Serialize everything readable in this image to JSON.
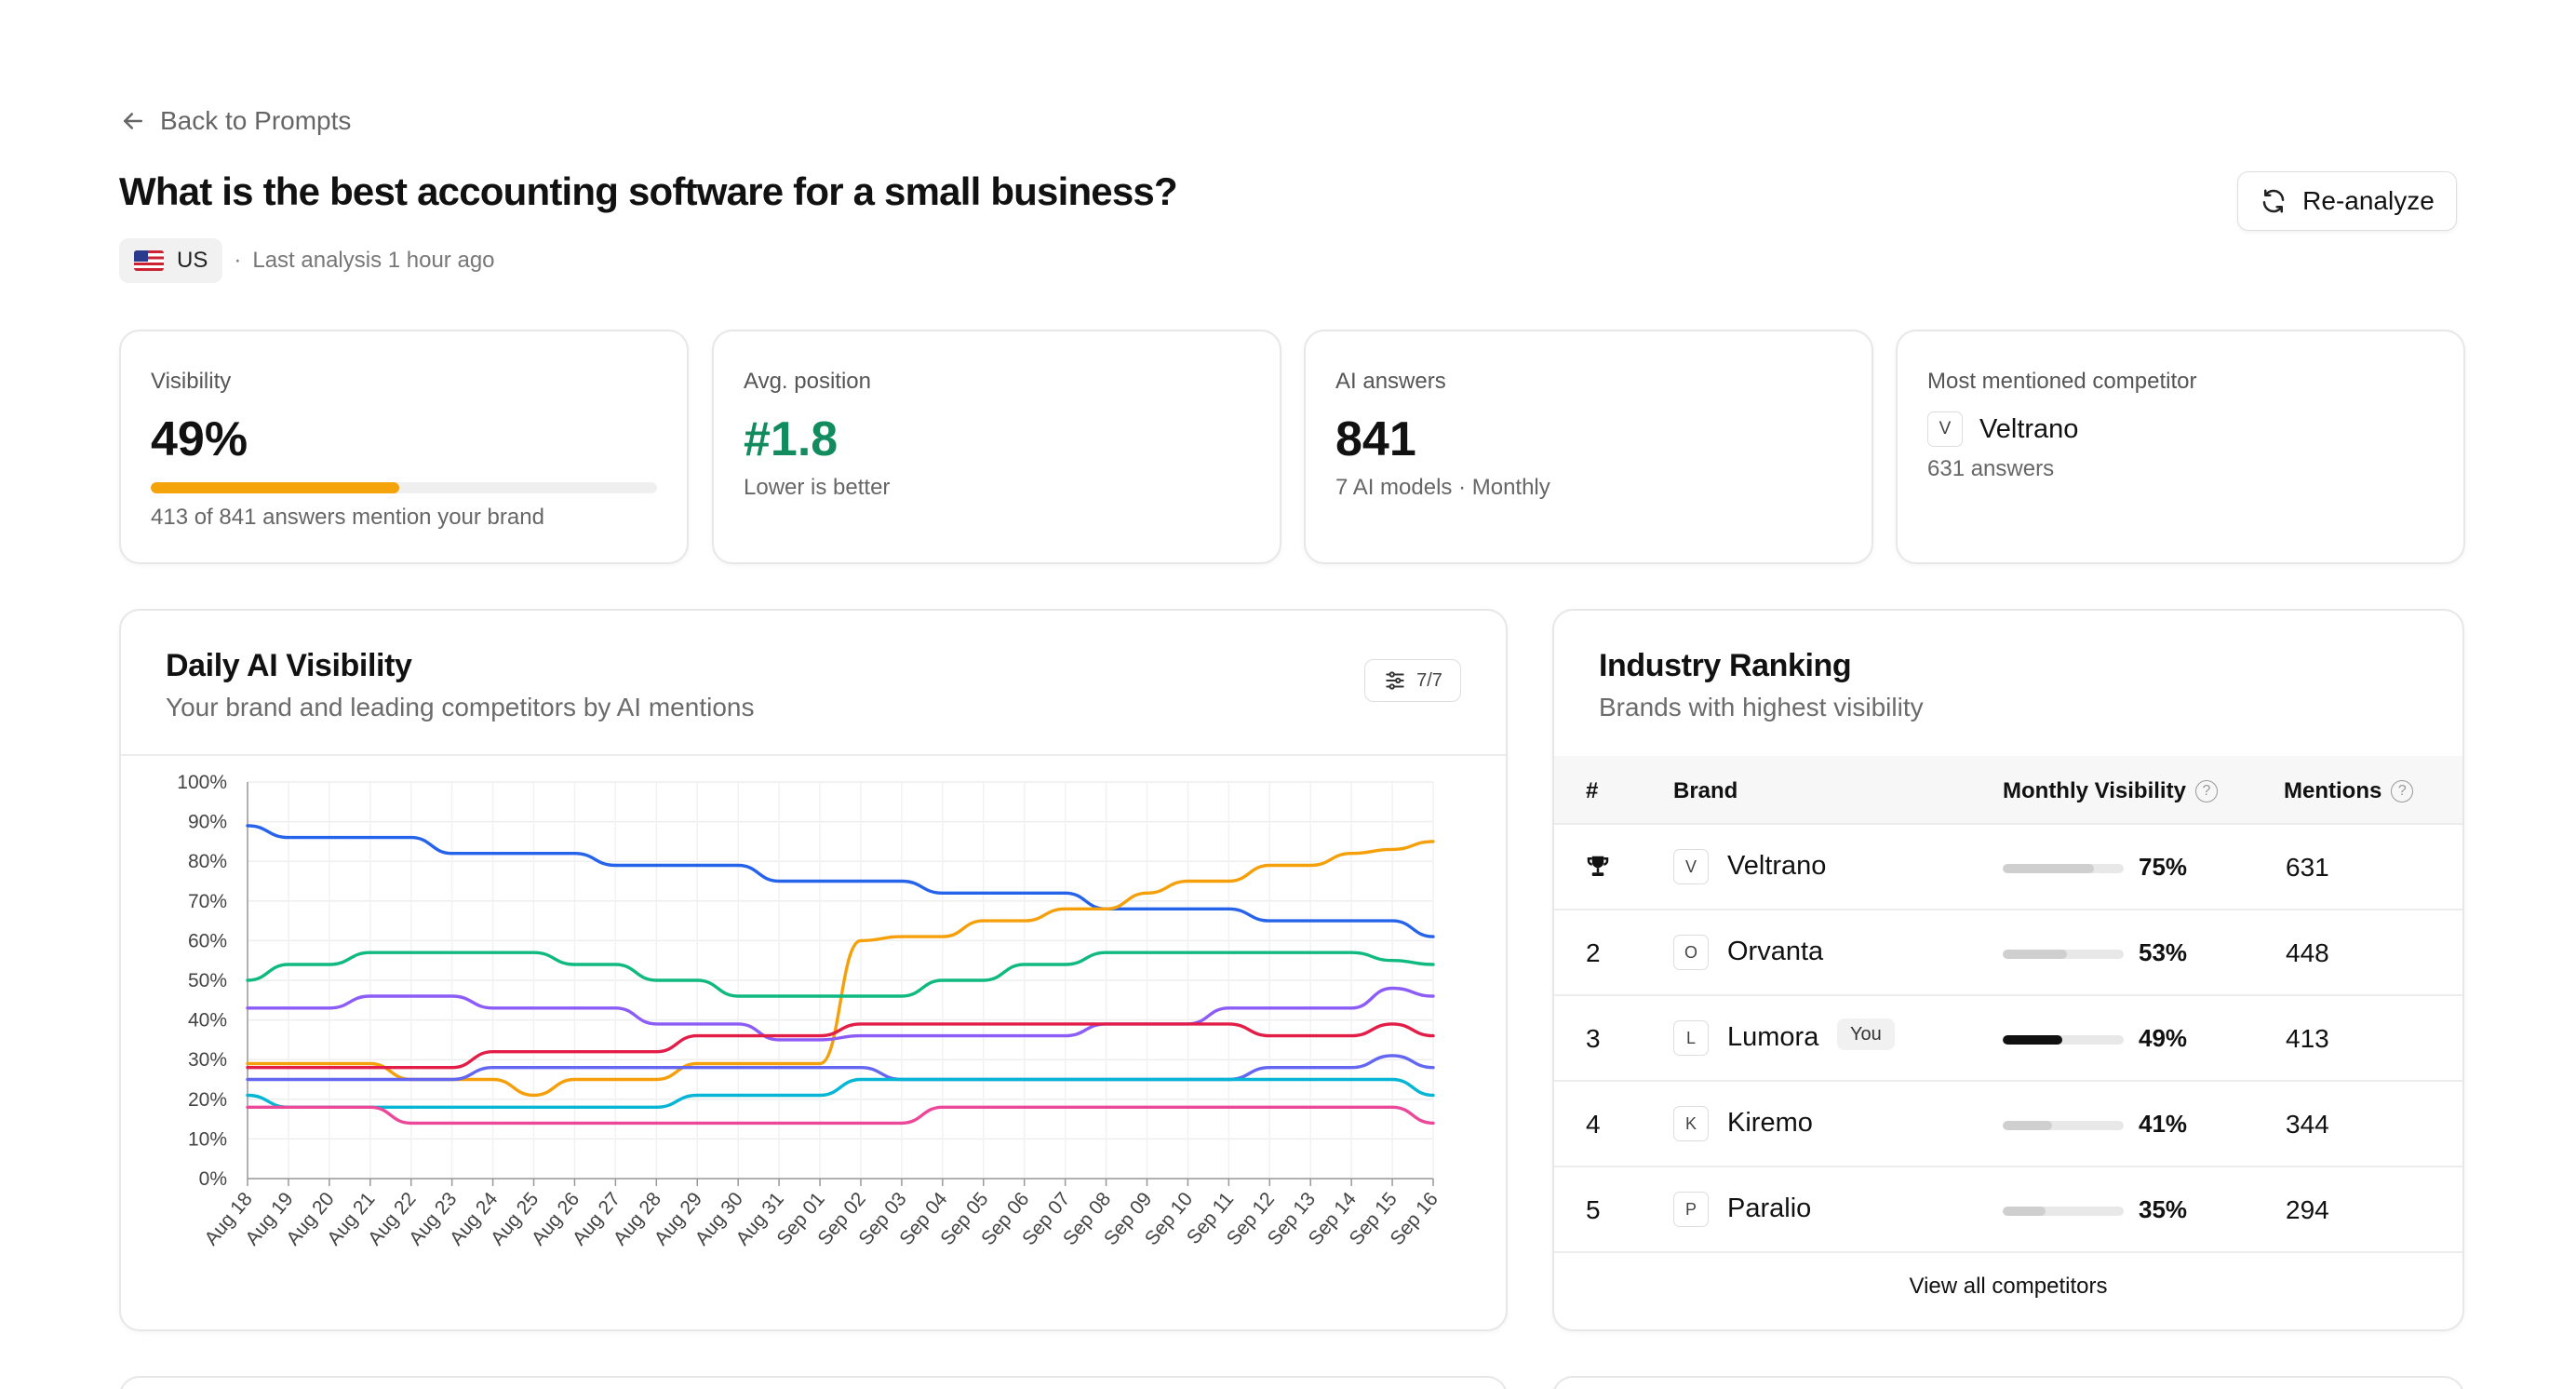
{
  "nav": {
    "back_label": "Back to Prompts"
  },
  "header": {
    "title": "What is the best accounting software for a small business?",
    "country": "US",
    "separator": "·",
    "last_analysis": "Last analysis 1 hour ago",
    "reanalyze_label": "Re-analyze"
  },
  "stats": {
    "visibility": {
      "label": "Visibility",
      "value": "49%",
      "fraction": 0.49,
      "sub": "413 of 841 answers mention your brand",
      "bar_color": "#f5a30a"
    },
    "avg_position": {
      "label": "Avg. position",
      "value": "#1.8",
      "sub": "Lower is better",
      "color": "#128c5e"
    },
    "ai_answers": {
      "label": "AI answers",
      "value": "841",
      "sub": "7 AI models · Monthly"
    },
    "top_competitor": {
      "label": "Most mentioned competitor",
      "logo": "V",
      "name": "Veltrano",
      "sub": "631 answers"
    }
  },
  "daily_chart": {
    "title": "Daily AI Visibility",
    "subtitle": "Your brand and leading competitors by AI mentions",
    "filter_label": "7/7",
    "icons": {
      "filter": "sliders-icon"
    }
  },
  "chart_data": {
    "type": "line",
    "x": [
      "Aug 18",
      "Aug 19",
      "Aug 20",
      "Aug 21",
      "Aug 22",
      "Aug 23",
      "Aug 24",
      "Aug 25",
      "Aug 26",
      "Aug 27",
      "Aug 28",
      "Aug 29",
      "Aug 30",
      "Aug 31",
      "Sep 01",
      "Sep 02",
      "Sep 03",
      "Sep 04",
      "Sep 05",
      "Sep 06",
      "Sep 07",
      "Sep 08",
      "Sep 09",
      "Sep 10",
      "Sep 11",
      "Sep 12",
      "Sep 13",
      "Sep 14",
      "Sep 15",
      "Sep 16"
    ],
    "ylim": [
      0,
      100
    ],
    "yticks": [
      "0%",
      "10%",
      "20%",
      "30%",
      "40%",
      "50%",
      "60%",
      "70%",
      "80%",
      "90%",
      "100%"
    ],
    "grid": true,
    "series": [
      {
        "color": "#2563eb",
        "values": [
          89,
          86,
          86,
          86,
          86,
          82,
          82,
          82,
          82,
          79,
          79,
          79,
          79,
          75,
          75,
          75,
          75,
          72,
          72,
          72,
          72,
          68,
          68,
          68,
          68,
          65,
          65,
          65,
          65,
          61
        ]
      },
      {
        "color": "#f5a00a",
        "values": [
          29,
          29,
          29,
          29,
          25,
          25,
          25,
          21,
          25,
          25,
          25,
          29,
          29,
          29,
          29,
          60,
          61,
          61,
          65,
          65,
          68,
          68,
          72,
          75,
          75,
          79,
          79,
          82,
          83,
          85
        ]
      },
      {
        "color": "#10b981",
        "values": [
          50,
          54,
          54,
          57,
          57,
          57,
          57,
          57,
          54,
          54,
          50,
          50,
          46,
          46,
          46,
          46,
          46,
          50,
          50,
          54,
          54,
          57,
          57,
          57,
          57,
          57,
          57,
          57,
          55,
          54
        ]
      },
      {
        "color": "#8b5cf6",
        "values": [
          43,
          43,
          43,
          46,
          46,
          46,
          43,
          43,
          43,
          43,
          39,
          39,
          39,
          35,
          35,
          36,
          36,
          36,
          36,
          36,
          36,
          39,
          39,
          39,
          43,
          43,
          43,
          43,
          48,
          46
        ]
      },
      {
        "color": "#e11d48",
        "values": [
          28,
          28,
          28,
          28,
          28,
          28,
          32,
          32,
          32,
          32,
          32,
          36,
          36,
          36,
          36,
          39,
          39,
          39,
          39,
          39,
          39,
          39,
          39,
          39,
          39,
          36,
          36,
          36,
          39,
          36
        ]
      },
      {
        "color": "#6366f1",
        "values": [
          25,
          25,
          25,
          25,
          25,
          25,
          28,
          28,
          28,
          28,
          28,
          28,
          28,
          28,
          28,
          28,
          25,
          25,
          25,
          25,
          25,
          25,
          25,
          25,
          25,
          28,
          28,
          28,
          31,
          28
        ]
      },
      {
        "color": "#06b6d4",
        "values": [
          21,
          18,
          18,
          18,
          18,
          18,
          18,
          18,
          18,
          18,
          18,
          21,
          21,
          21,
          21,
          25,
          25,
          25,
          25,
          25,
          25,
          25,
          25,
          25,
          25,
          25,
          25,
          25,
          25,
          21
        ]
      },
      {
        "color": "#ec4899",
        "values": [
          18,
          18,
          18,
          18,
          14,
          14,
          14,
          14,
          14,
          14,
          14,
          14,
          14,
          14,
          14,
          14,
          14,
          18,
          18,
          18,
          18,
          18,
          18,
          18,
          18,
          18,
          18,
          18,
          18,
          14
        ]
      }
    ]
  },
  "ranking": {
    "title": "Industry Ranking",
    "subtitle": "Brands with highest visibility",
    "columns": {
      "rank": "#",
      "brand": "Brand",
      "visibility": "Monthly Visibility",
      "mentions": "Mentions",
      "help": "?"
    },
    "you_label": "You",
    "rows": [
      {
        "rank": "1",
        "trophy": true,
        "logo": "V",
        "brand": "Veltrano",
        "visibility": "75%",
        "fraction": 0.75,
        "mentions": "631",
        "you": false
      },
      {
        "rank": "2",
        "trophy": false,
        "logo": "O",
        "brand": "Orvanta",
        "visibility": "53%",
        "fraction": 0.53,
        "mentions": "448",
        "you": false
      },
      {
        "rank": "3",
        "trophy": false,
        "logo": "L",
        "brand": "Lumora",
        "visibility": "49%",
        "fraction": 0.49,
        "mentions": "413",
        "you": true
      },
      {
        "rank": "4",
        "trophy": false,
        "logo": "K",
        "brand": "Kiremo",
        "visibility": "41%",
        "fraction": 0.41,
        "mentions": "344",
        "you": false
      },
      {
        "rank": "5",
        "trophy": false,
        "logo": "P",
        "brand": "Paralio",
        "visibility": "35%",
        "fraction": 0.35,
        "mentions": "294",
        "you": false
      }
    ],
    "view_all_label": "View all competitors"
  }
}
